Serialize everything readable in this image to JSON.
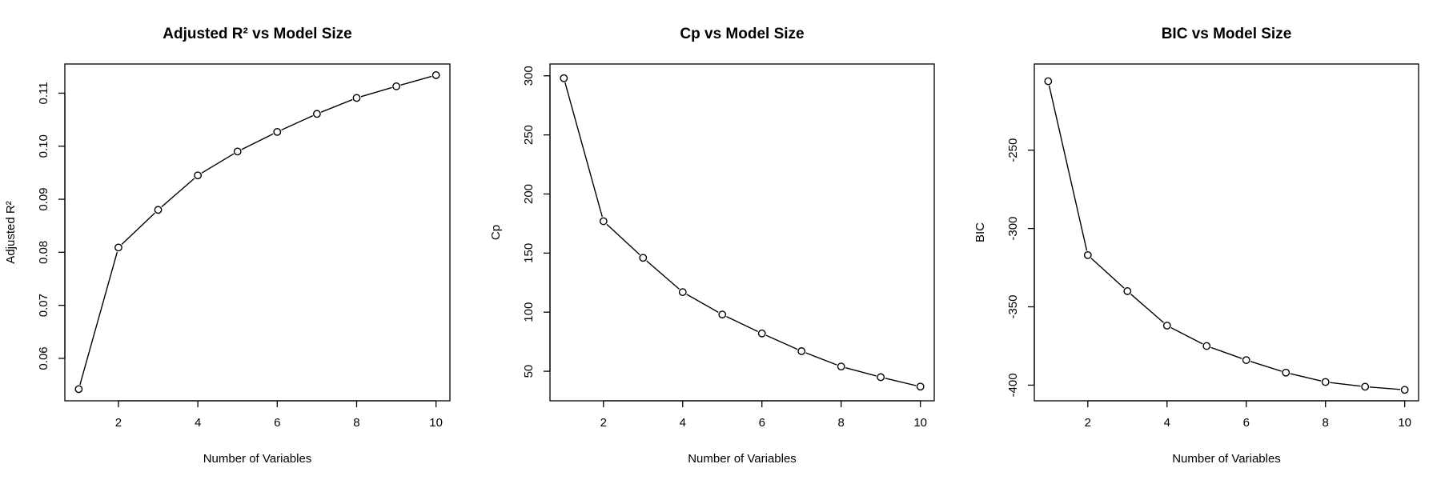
{
  "chart_data": [
    {
      "type": "line",
      "title": "Adjusted R² vs Model Size",
      "xlabel": "Number of Variables",
      "ylabel": "Adjusted R²",
      "xlim": [
        0.65,
        10.35
      ],
      "ylim": [
        0.052,
        0.1155
      ],
      "xticks": [
        2,
        4,
        6,
        8,
        10
      ],
      "yticks": [
        0.06,
        0.07,
        0.08,
        0.09,
        0.1,
        0.11
      ],
      "ytick_labels": [
        "0.06",
        "0.07",
        "0.08",
        "0.09",
        "0.10",
        "0.11"
      ],
      "grid": false,
      "series": [
        {
          "x": [
            1,
            2,
            3,
            4,
            5,
            6,
            7,
            8,
            9,
            10
          ],
          "values": [
            0.0542,
            0.0809,
            0.088,
            0.0945,
            0.099,
            0.1027,
            0.1061,
            0.1091,
            0.1113,
            0.1134
          ]
        }
      ]
    },
    {
      "type": "line",
      "title": "Cp vs Model Size",
      "xlabel": "Number of Variables",
      "ylabel": "Cp",
      "xlim": [
        0.65,
        10.35
      ],
      "ylim": [
        25,
        310
      ],
      "xticks": [
        2,
        4,
        6,
        8,
        10
      ],
      "yticks": [
        50,
        100,
        150,
        200,
        250,
        300
      ],
      "ytick_labels": [
        "50",
        "100",
        "150",
        "200",
        "250",
        "300"
      ],
      "grid": false,
      "series": [
        {
          "x": [
            1,
            2,
            3,
            4,
            5,
            6,
            7,
            8,
            9,
            10
          ],
          "values": [
            298,
            177,
            146,
            117,
            98,
            82,
            67,
            54,
            45,
            37
          ]
        }
      ]
    },
    {
      "type": "line",
      "title": "BIC vs Model Size",
      "xlabel": "Number of Variables",
      "ylabel": "BIC",
      "xlim": [
        0.65,
        10.35
      ],
      "ylim": [
        -410,
        -195
      ],
      "xticks": [
        2,
        4,
        6,
        8,
        10
      ],
      "yticks": [
        -400,
        -350,
        -300,
        -250
      ],
      "ytick_labels": [
        "-400",
        "-350",
        "-300",
        "-250"
      ],
      "grid": false,
      "series": [
        {
          "x": [
            1,
            2,
            3,
            4,
            5,
            6,
            7,
            8,
            9,
            10
          ],
          "values": [
            -206,
            -317,
            -340,
            -362,
            -375,
            -384,
            -392,
            -398,
            -401,
            -403
          ]
        }
      ]
    }
  ]
}
